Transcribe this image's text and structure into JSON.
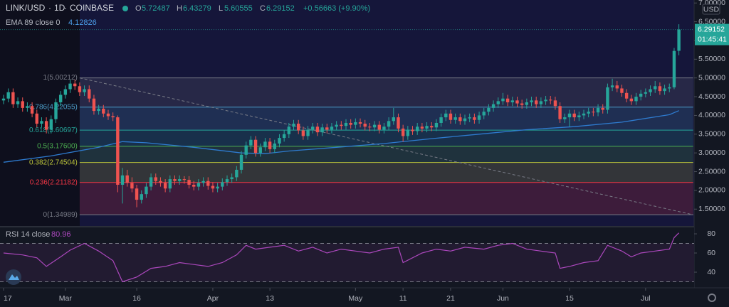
{
  "chart_data": {
    "type": "candlestick",
    "symbol": "LINK/USD",
    "interval": "1D",
    "exchange": "COINBASE",
    "ohlc_labels": [
      "O",
      "H",
      "L",
      "C"
    ],
    "change": "+0.56663 (+9.90%)",
    "currency": "USD",
    "countdown": "01:45:41",
    "up_color": "#26a69a",
    "down_color": "#ef5350",
    "xlim": [
      -0.75,
      145.2
    ],
    "ylim": [
      1.05,
      7.08
    ],
    "xticks": [
      {
        "value": 0,
        "label": "17"
      },
      {
        "value": 13,
        "label": "Mar"
      },
      {
        "value": 28,
        "label": "16"
      },
      {
        "value": 44,
        "label": "Apr"
      },
      {
        "value": 56,
        "label": "13"
      },
      {
        "value": 74,
        "label": "May"
      },
      {
        "value": 84,
        "label": "11"
      },
      {
        "value": 94,
        "label": "21"
      },
      {
        "value": 105,
        "label": "Jun"
      },
      {
        "value": 119,
        "label": "15"
      },
      {
        "value": 135,
        "label": "Jul"
      }
    ],
    "yticks": [
      {
        "value": 1.5,
        "label": "1.50000"
      },
      {
        "value": 2,
        "label": "2.00000"
      },
      {
        "value": 2.5,
        "label": "2.50000"
      },
      {
        "value": 3,
        "label": "3.00000"
      },
      {
        "value": 3.5,
        "label": "3.50000"
      },
      {
        "value": 4,
        "label": "4.00000"
      },
      {
        "value": 4.5,
        "label": "4.50000"
      },
      {
        "value": 5,
        "label": "5.00000"
      },
      {
        "value": 5.5,
        "label": "5.50000"
      },
      {
        "value": 6,
        "label": "6.00000"
      },
      {
        "value": 6.5,
        "label": "6.50000"
      },
      {
        "value": 7,
        "label": "7.00000"
      }
    ],
    "ohlc": [
      [
        4.4,
        4.55,
        4.3,
        4.45
      ],
      [
        4.45,
        4.72,
        4.35,
        4.62
      ],
      [
        4.62,
        4.72,
        4.2,
        4.3
      ],
      [
        4.3,
        4.48,
        4.2,
        4.38
      ],
      [
        4.38,
        4.48,
        4.1,
        4.2
      ],
      [
        4.2,
        4.35,
        4.1,
        4.25
      ],
      [
        4.25,
        4.35,
        3.95,
        4.05
      ],
      [
        4.05,
        4.15,
        3.68,
        3.78
      ],
      [
        3.78,
        3.95,
        3.68,
        3.85
      ],
      [
        3.85,
        3.95,
        3.52,
        3.62
      ],
      [
        3.62,
        4.0,
        3.52,
        3.9
      ],
      [
        3.9,
        4.45,
        3.8,
        4.35
      ],
      [
        4.35,
        4.65,
        4.25,
        4.55
      ],
      [
        4.55,
        4.8,
        4.45,
        4.7
      ],
      [
        4.7,
        4.95,
        4.6,
        4.85
      ],
      [
        4.85,
        4.95,
        4.68,
        4.78
      ],
      [
        4.78,
        4.88,
        4.52,
        4.62
      ],
      [
        4.62,
        4.8,
        4.52,
        4.7
      ],
      [
        4.7,
        4.8,
        4.35,
        4.45
      ],
      [
        4.45,
        4.55,
        4.02,
        4.12
      ],
      [
        4.12,
        4.28,
        4.02,
        4.18
      ],
      [
        4.18,
        4.28,
        3.95,
        4.05
      ],
      [
        4.05,
        4.15,
        3.88,
        3.98
      ],
      [
        3.98,
        4.08,
        3.85,
        3.95
      ],
      [
        3.95,
        4.0,
        1.95,
        2.15
      ],
      [
        2.15,
        2.6,
        1.65,
        2.4
      ],
      [
        2.4,
        2.55,
        2.1,
        2.2
      ],
      [
        2.2,
        2.35,
        1.95,
        2.05
      ],
      [
        2.05,
        2.15,
        1.55,
        1.75
      ],
      [
        1.75,
        2.0,
        1.65,
        1.9
      ],
      [
        1.9,
        2.2,
        1.8,
        2.1
      ],
      [
        2.1,
        2.45,
        2.0,
        2.35
      ],
      [
        2.35,
        2.45,
        2.15,
        2.25
      ],
      [
        2.25,
        2.35,
        2.1,
        2.2
      ],
      [
        2.2,
        2.3,
        1.95,
        2.05
      ],
      [
        2.05,
        2.4,
        1.95,
        2.3
      ],
      [
        2.3,
        2.4,
        2.15,
        2.25
      ],
      [
        2.25,
        2.4,
        2.15,
        2.3
      ],
      [
        2.3,
        2.38,
        2.18,
        2.28
      ],
      [
        2.28,
        2.38,
        2.05,
        2.15
      ],
      [
        2.15,
        2.25,
        2.0,
        2.1
      ],
      [
        2.1,
        2.3,
        2.0,
        2.2
      ],
      [
        2.2,
        2.35,
        2.1,
        2.25
      ],
      [
        2.25,
        2.35,
        2.02,
        2.12
      ],
      [
        2.12,
        2.22,
        1.95,
        2.05
      ],
      [
        2.05,
        2.2,
        1.95,
        2.1
      ],
      [
        2.1,
        2.32,
        2.0,
        2.22
      ],
      [
        2.22,
        2.4,
        2.12,
        2.3
      ],
      [
        2.3,
        2.45,
        2.2,
        2.35
      ],
      [
        2.35,
        2.65,
        2.25,
        2.55
      ],
      [
        2.55,
        3.05,
        2.45,
        2.95
      ],
      [
        2.95,
        3.3,
        2.85,
        3.2
      ],
      [
        3.2,
        3.45,
        3.1,
        3.35
      ],
      [
        3.35,
        3.45,
        2.9,
        3.0
      ],
      [
        3.0,
        3.25,
        2.9,
        3.15
      ],
      [
        3.15,
        3.4,
        3.05,
        3.3
      ],
      [
        3.3,
        3.4,
        3.0,
        3.1
      ],
      [
        3.1,
        3.35,
        3.0,
        3.25
      ],
      [
        3.25,
        3.5,
        3.15,
        3.4
      ],
      [
        3.4,
        3.6,
        3.3,
        3.5
      ],
      [
        3.5,
        3.8,
        3.4,
        3.7
      ],
      [
        3.7,
        3.88,
        3.6,
        3.78
      ],
      [
        3.78,
        3.88,
        3.5,
        3.6
      ],
      [
        3.6,
        3.7,
        3.35,
        3.45
      ],
      [
        3.45,
        3.72,
        3.35,
        3.62
      ],
      [
        3.62,
        3.8,
        3.52,
        3.7
      ],
      [
        3.7,
        3.8,
        3.45,
        3.55
      ],
      [
        3.55,
        3.78,
        3.45,
        3.68
      ],
      [
        3.68,
        3.78,
        3.52,
        3.62
      ],
      [
        3.62,
        3.8,
        3.52,
        3.7
      ],
      [
        3.7,
        3.85,
        3.6,
        3.75
      ],
      [
        3.75,
        3.85,
        3.62,
        3.72
      ],
      [
        3.72,
        3.9,
        3.62,
        3.8
      ],
      [
        3.8,
        3.9,
        3.65,
        3.75
      ],
      [
        3.75,
        3.92,
        3.65,
        3.82
      ],
      [
        3.82,
        3.92,
        3.68,
        3.78
      ],
      [
        3.78,
        3.88,
        3.6,
        3.7
      ],
      [
        3.7,
        3.8,
        3.58,
        3.68
      ],
      [
        3.68,
        3.85,
        3.58,
        3.75
      ],
      [
        3.75,
        3.85,
        3.52,
        3.62
      ],
      [
        3.62,
        3.8,
        3.52,
        3.7
      ],
      [
        3.7,
        3.95,
        3.6,
        3.85
      ],
      [
        3.85,
        4.2,
        3.75,
        3.95
      ],
      [
        3.95,
        4.05,
        3.55,
        3.65
      ],
      [
        3.65,
        3.75,
        3.3,
        3.45
      ],
      [
        3.45,
        3.72,
        3.35,
        3.62
      ],
      [
        3.62,
        3.72,
        3.48,
        3.58
      ],
      [
        3.58,
        3.8,
        3.48,
        3.7
      ],
      [
        3.7,
        3.8,
        3.55,
        3.65
      ],
      [
        3.65,
        3.82,
        3.55,
        3.72
      ],
      [
        3.72,
        3.82,
        3.58,
        3.68
      ],
      [
        3.68,
        3.9,
        3.58,
        3.8
      ],
      [
        3.8,
        4.05,
        3.7,
        3.95
      ],
      [
        3.95,
        4.15,
        3.85,
        4.05
      ],
      [
        4.05,
        4.15,
        3.78,
        3.88
      ],
      [
        3.88,
        4.05,
        3.78,
        3.95
      ],
      [
        3.95,
        4.05,
        3.75,
        3.85
      ],
      [
        3.85,
        4.02,
        3.75,
        3.92
      ],
      [
        3.92,
        4.05,
        3.82,
        3.95
      ],
      [
        3.95,
        4.05,
        3.78,
        3.88
      ],
      [
        3.88,
        4.1,
        3.78,
        4.0
      ],
      [
        4.0,
        4.2,
        3.9,
        4.1
      ],
      [
        4.1,
        4.3,
        4.0,
        4.2
      ],
      [
        4.2,
        4.4,
        4.1,
        4.3
      ],
      [
        4.3,
        4.48,
        4.2,
        4.38
      ],
      [
        4.38,
        4.6,
        4.28,
        4.45
      ],
      [
        4.45,
        4.55,
        4.25,
        4.35
      ],
      [
        4.35,
        4.5,
        4.25,
        4.4
      ],
      [
        4.4,
        4.5,
        4.22,
        4.32
      ],
      [
        4.32,
        4.42,
        4.18,
        4.28
      ],
      [
        4.28,
        4.45,
        4.18,
        4.35
      ],
      [
        4.35,
        4.5,
        4.25,
        4.4
      ],
      [
        4.4,
        4.5,
        4.2,
        4.3
      ],
      [
        4.3,
        4.48,
        4.2,
        4.38
      ],
      [
        4.38,
        4.52,
        4.28,
        4.42
      ],
      [
        4.42,
        4.52,
        4.3,
        4.4
      ],
      [
        4.4,
        4.5,
        4.15,
        4.25
      ],
      [
        4.25,
        4.35,
        3.8,
        3.9
      ],
      [
        3.9,
        4.05,
        3.8,
        3.95
      ],
      [
        3.95,
        4.15,
        3.7,
        4.05
      ],
      [
        4.05,
        4.15,
        3.85,
        3.95
      ],
      [
        3.95,
        4.1,
        3.85,
        4.0
      ],
      [
        4.0,
        4.15,
        3.9,
        4.05
      ],
      [
        4.05,
        4.2,
        3.95,
        4.1
      ],
      [
        4.1,
        4.2,
        3.98,
        4.08
      ],
      [
        4.08,
        4.3,
        3.98,
        4.2
      ],
      [
        4.2,
        4.3,
        4.05,
        4.15
      ],
      [
        4.15,
        4.85,
        4.05,
        4.75
      ],
      [
        4.75,
        4.98,
        4.65,
        4.8
      ],
      [
        4.8,
        4.92,
        4.62,
        4.72
      ],
      [
        4.72,
        4.82,
        4.5,
        4.6
      ],
      [
        4.6,
        4.7,
        4.35,
        4.45
      ],
      [
        4.45,
        4.55,
        4.28,
        4.38
      ],
      [
        4.38,
        4.6,
        4.28,
        4.5
      ],
      [
        4.5,
        4.68,
        4.4,
        4.58
      ],
      [
        4.58,
        4.72,
        4.48,
        4.62
      ],
      [
        4.62,
        4.8,
        4.52,
        4.7
      ],
      [
        4.7,
        4.92,
        4.6,
        4.78
      ],
      [
        4.78,
        4.88,
        4.55,
        4.65
      ],
      [
        4.65,
        4.82,
        4.55,
        4.72
      ],
      [
        4.72,
        4.85,
        4.62,
        4.75
      ],
      [
        4.75,
        5.8,
        4.7,
        5.72
      ],
      [
        5.72487,
        6.43279,
        5.60555,
        6.29152
      ]
    ],
    "ema": {
      "name": "EMA 89 close 0",
      "color": "#2e7bcf",
      "x": [
        0,
        10,
        20,
        25,
        30,
        40,
        50,
        55,
        60,
        70,
        80,
        90,
        100,
        110,
        120,
        130,
        140,
        142
      ],
      "values": [
        2.75,
        2.92,
        3.15,
        3.3,
        3.27,
        3.15,
        3.0,
        2.98,
        3.05,
        3.15,
        3.25,
        3.38,
        3.5,
        3.62,
        3.7,
        3.82,
        4.02,
        4.12826
      ]
    },
    "fib": {
      "anchor_x": [
        16,
        145
      ],
      "trend_color": "#787b86",
      "levels": [
        {
          "label": "1(5.00212)",
          "value": 5.00212,
          "color": "#787b86"
        },
        {
          "label": "0.786(4.22055)",
          "value": 4.22055,
          "color": "#4c9ec8"
        },
        {
          "label": "0.618(3.60697)",
          "value": 3.60697,
          "color": "#26a69a"
        },
        {
          "label": "0.5(3.17600)",
          "value": 3.176,
          "color": "#4caf50"
        },
        {
          "label": "0.382(2.74504)",
          "value": 2.74504,
          "color": "#bcc43a"
        },
        {
          "label": "0.236(2.21182)",
          "value": 2.21182,
          "color": "#f23645"
        },
        {
          "label": "0(1.34989)",
          "value": 1.34989,
          "color": "#787b86"
        }
      ]
    },
    "rsi": {
      "name": "RSI 14 close",
      "color": "#ab47bc",
      "ylim": [
        23.7,
        86.7
      ],
      "yticks": [
        40,
        60,
        80
      ],
      "bands": [
        30,
        70
      ],
      "x": [
        0,
        4,
        7,
        9,
        12,
        14,
        17,
        20,
        23,
        25,
        28,
        31,
        34,
        37,
        40,
        43,
        46,
        49,
        51,
        53,
        56,
        59,
        62,
        65,
        68,
        71,
        74,
        77,
        80,
        83,
        84,
        88,
        91,
        94,
        97,
        101,
        104,
        107,
        110,
        113,
        116,
        117,
        119,
        122,
        125,
        127,
        130,
        132,
        134,
        137,
        140,
        141,
        142
      ],
      "values": [
        60,
        58,
        55,
        46,
        56,
        63,
        70,
        62,
        52,
        30,
        35,
        44,
        46,
        50,
        48,
        46,
        50,
        58,
        68,
        64,
        66,
        68,
        62,
        66,
        60,
        64,
        62,
        60,
        64,
        66,
        50,
        60,
        64,
        62,
        66,
        64,
        68,
        70,
        64,
        62,
        60,
        44,
        46,
        50,
        52,
        68,
        62,
        56,
        60,
        62,
        64,
        76,
        80.96
      ]
    }
  }
}
